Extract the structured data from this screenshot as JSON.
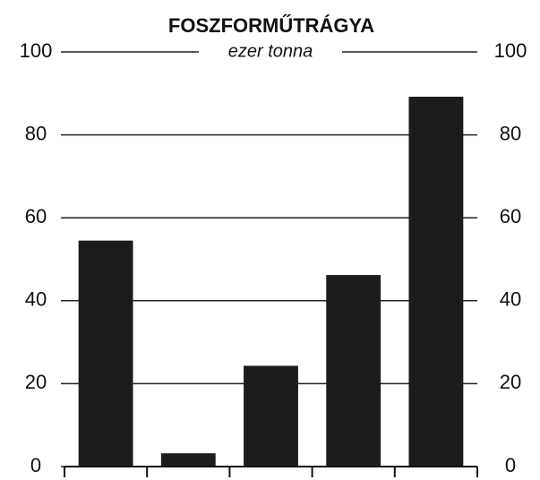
{
  "chart_data": {
    "type": "bar",
    "title": "FOSZFORMŰTRÁGYA",
    "subtitle": "ezer tonna",
    "categories": [
      null,
      null,
      null,
      null,
      null
    ],
    "values": [
      54.5,
      3.2,
      24.3,
      46.2,
      89.2
    ],
    "color": "#1c1c1c",
    "ylim": [
      0,
      100
    ],
    "yticks": [
      0,
      20,
      40,
      60,
      80,
      100
    ],
    "y2lim": [
      0,
      100
    ],
    "y2ticks": [
      0,
      20,
      40,
      60,
      80,
      100
    ],
    "grid": true
  }
}
